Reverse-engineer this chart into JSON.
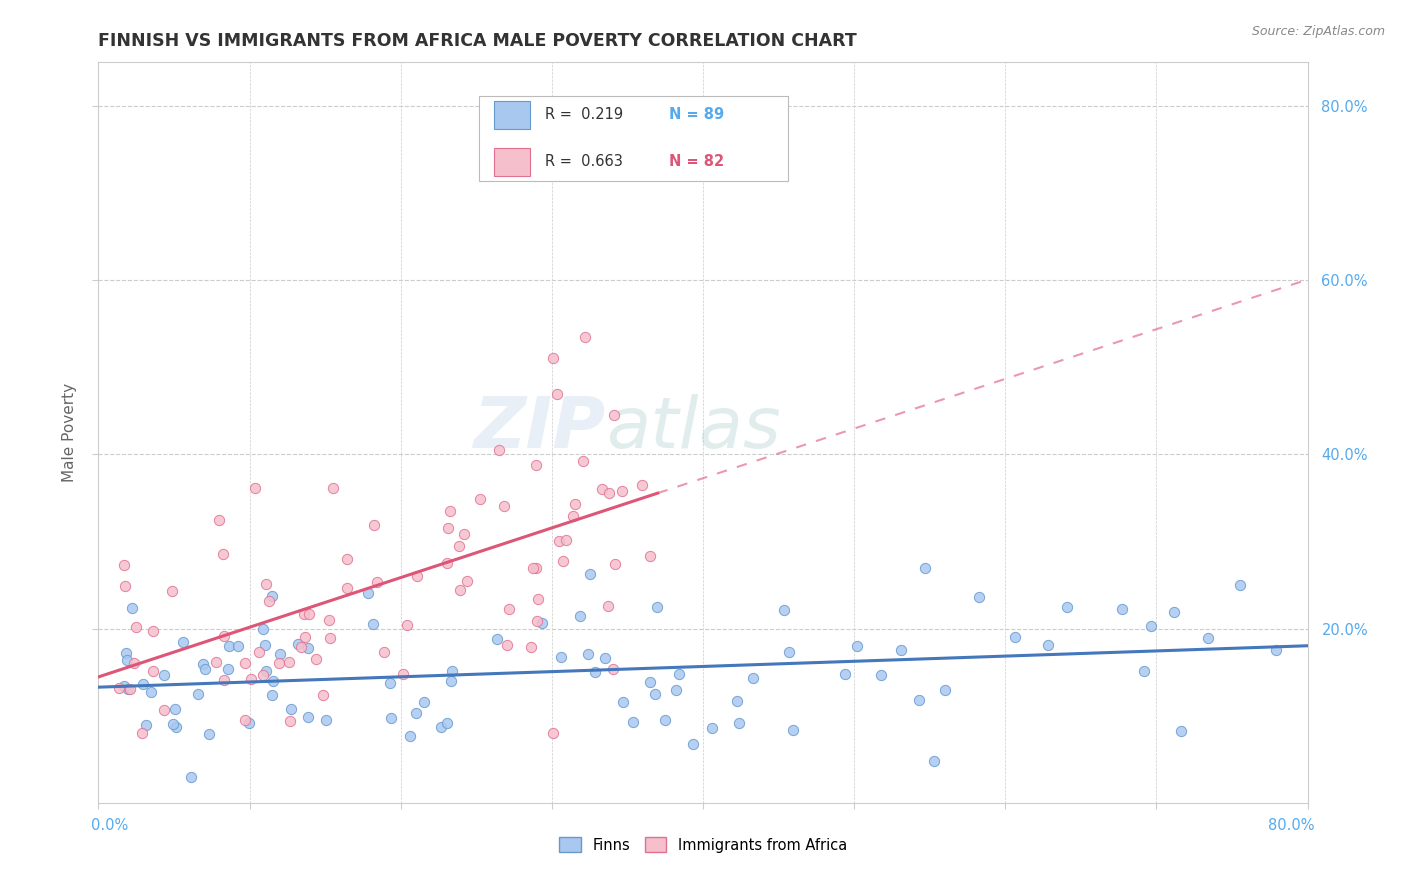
{
  "title": "FINNISH VS IMMIGRANTS FROM AFRICA MALE POVERTY CORRELATION CHART",
  "source": "Source: ZipAtlas.com",
  "ylabel": "Male Poverty",
  "x_min": 0.0,
  "x_max": 0.8,
  "y_min": 0.0,
  "y_max": 0.85,
  "watermark_zip": "ZIP",
  "watermark_atlas": "atlas",
  "legend_r1": "R =  0.219",
  "legend_n1": "N = 89",
  "legend_r2": "R =  0.663",
  "legend_n2": "N = 82",
  "color_finns_fill": "#A8C8F0",
  "color_finns_edge": "#6699CC",
  "color_africa_fill": "#F5BFCC",
  "color_africa_edge": "#E07090",
  "color_finns_line": "#4477BB",
  "color_africa_line": "#DD5577",
  "color_grid": "#CCCCCC",
  "color_right_axis": "#55AAEE",
  "color_source": "#888888",
  "color_title": "#333333",
  "color_ylabel": "#666666",
  "finns_R": 0.219,
  "africa_R": 0.663,
  "finns_N": 89,
  "africa_N": 82,
  "finns_seed": 77,
  "africa_seed": 55
}
